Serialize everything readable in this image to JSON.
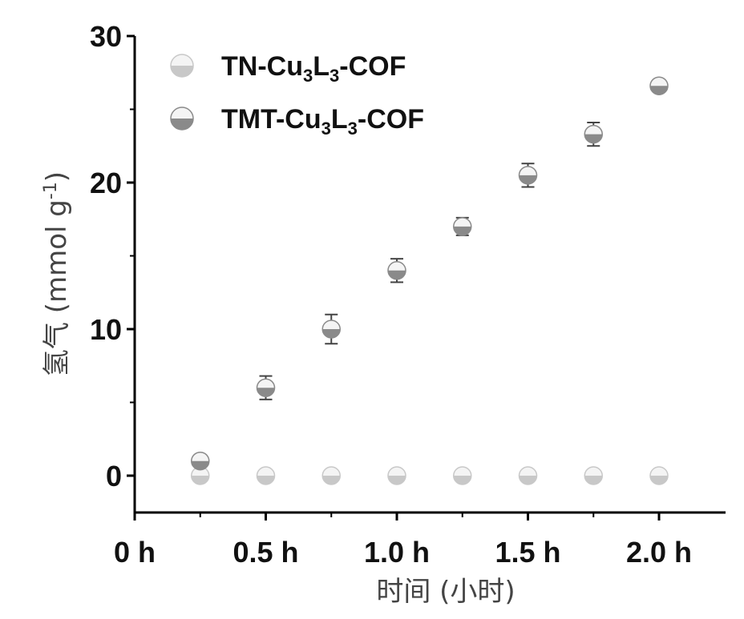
{
  "chart_data": {
    "type": "scatter",
    "xlabel": "时间 (小时)",
    "ylabel": "氢气 (mmol g",
    "ylabel_sup": "-1",
    "ylabel_close": ")",
    "xlim": [
      0,
      2.2
    ],
    "ylim": [
      -2.5,
      30
    ],
    "x_ticks": [
      {
        "value": 0,
        "label": "0 h"
      },
      {
        "value": 0.5,
        "label": "0.5 h"
      },
      {
        "value": 1.0,
        "label": "1.0 h"
      },
      {
        "value": 1.5,
        "label": "1.5 h"
      },
      {
        "value": 2.0,
        "label": "2.0 h"
      }
    ],
    "y_ticks": [
      {
        "value": 0,
        "label": "0"
      },
      {
        "value": 10,
        "label": "10"
      },
      {
        "value": 20,
        "label": "20"
      },
      {
        "value": 30,
        "label": "30"
      }
    ],
    "grid": false,
    "legend_position": "top-left",
    "series": [
      {
        "legend_parts": [
          "TN-Cu",
          "3",
          "L",
          "3",
          "-COF"
        ],
        "color": "#c8c8c8",
        "x": [
          0.25,
          0.5,
          0.75,
          1.0,
          1.25,
          1.5,
          1.75,
          2.0
        ],
        "y": [
          0,
          0,
          0,
          0,
          0,
          0,
          0,
          0
        ],
        "err": [
          0,
          0,
          0,
          0,
          0,
          0,
          0,
          0
        ]
      },
      {
        "legend_parts": [
          "TMT-Cu",
          "3",
          "L",
          "3",
          "-COF"
        ],
        "color": "#8a8a8a",
        "x": [
          0.25,
          0.5,
          0.75,
          1.0,
          1.25,
          1.5,
          1.75,
          2.0
        ],
        "y": [
          1.0,
          6.0,
          10.0,
          14.0,
          17.0,
          20.5,
          23.3,
          26.6
        ],
        "err": [
          0.3,
          0.8,
          1.0,
          0.8,
          0.6,
          0.8,
          0.8,
          0.4
        ]
      }
    ]
  }
}
